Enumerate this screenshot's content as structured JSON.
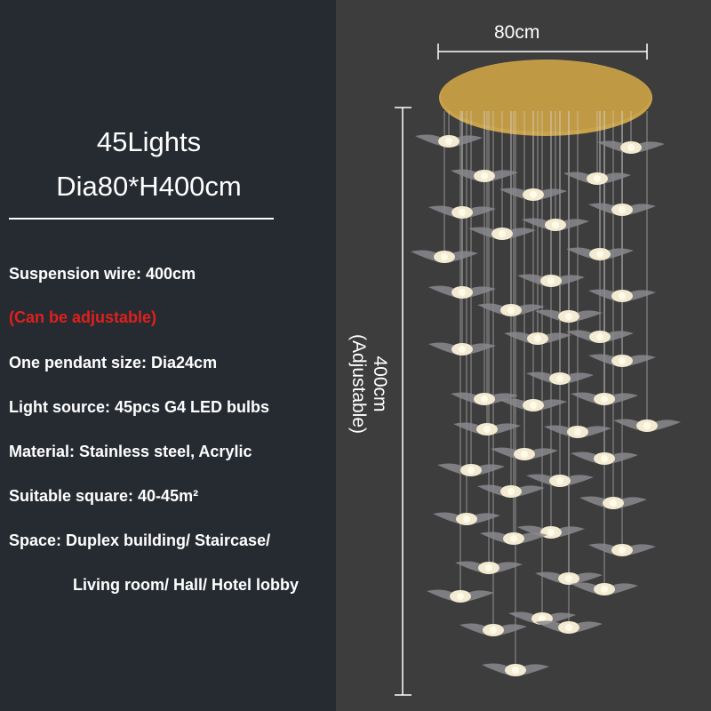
{
  "heading": {
    "lights": "45Lights",
    "size": "Dia80*H400cm"
  },
  "specs": [
    {
      "text": "Suspension wire: 400cm",
      "color": "#ffffff"
    },
    {
      "text": "(Can be adjustable)",
      "color": "#e0201c"
    },
    {
      "text": "One pendant size: Dia24cm",
      "color": "#ffffff"
    },
    {
      "text": "Light source: 45pcs G4 LED bulbs",
      "color": "#ffffff"
    },
    {
      "text": "Material: Stainless steel, Acrylic",
      "color": "#ffffff"
    },
    {
      "text": "Suitable square: 40-45m²",
      "color": "#ffffff"
    },
    {
      "text": "Space: Duplex building/ Staircase/",
      "color": "#ffffff"
    },
    {
      "text": "Living room/ Hall/ Hotel lobby",
      "color": "#ffffff"
    }
  ],
  "dimensions": {
    "width": "80cm",
    "height": "400cm",
    "height_note": "(Adjustable)"
  },
  "colors": {
    "left_bg": "#262b32",
    "right_bg": "#3d3d3d",
    "canopy": "#c9a24a"
  }
}
